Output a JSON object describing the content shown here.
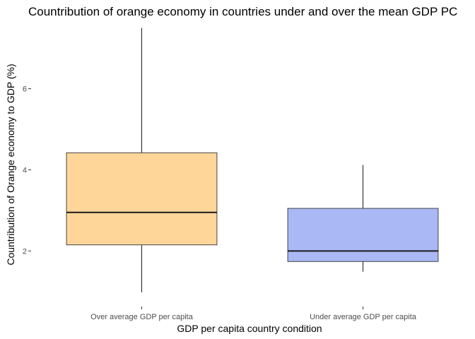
{
  "chart_data": {
    "type": "boxplot",
    "title": "Countribution of orange economy in countries under and over the mean GDP PC",
    "xlabel": "GDP per capita country condition",
    "ylabel": "Countribution of Orange economy to GDP (%)",
    "ylim": [
      0.7,
      7.7
    ],
    "yticks": [
      2,
      4,
      6
    ],
    "ytick_labels": [
      "2",
      "4",
      "6"
    ],
    "grid": false,
    "legend": "none",
    "categories": [
      "Over average GDP per capita",
      "Under average GDP per capita"
    ],
    "series": [
      {
        "category": "Over average GDP per capita",
        "min": 0.98,
        "q1": 2.15,
        "median": 2.95,
        "q3": 4.42,
        "max": 7.5,
        "color": "#FFD699"
      },
      {
        "category": "Under average GDP per capita",
        "min": 1.49,
        "q1": 1.74,
        "median": 2.0,
        "q3": 3.05,
        "max": 4.12,
        "color": "#AAB9F5"
      }
    ]
  }
}
